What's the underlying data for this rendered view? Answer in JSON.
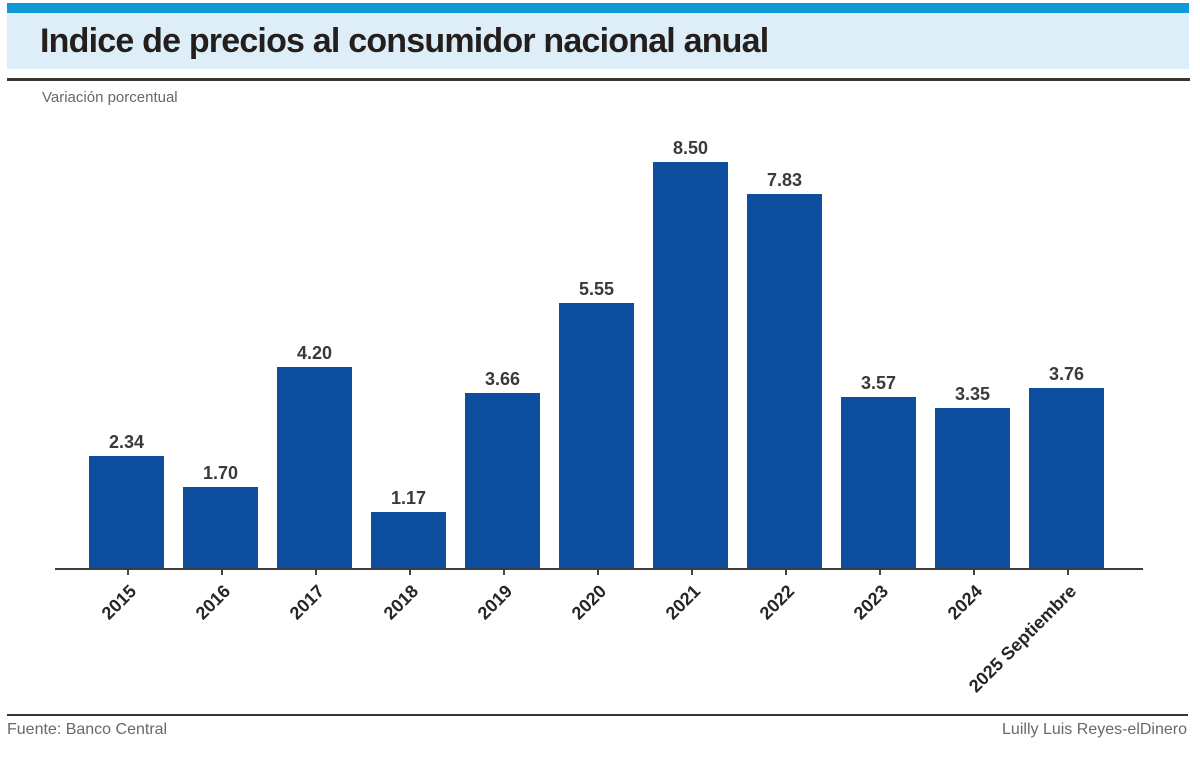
{
  "header": {
    "title": "Indice de precios al consumidor nacional anual",
    "subtitle": "Variación porcentual"
  },
  "footer": {
    "source": "Fuente: Banco Central",
    "credit": "Luilly Luis Reyes-elDinero"
  },
  "colors": {
    "accent_strip": "#0f99d7",
    "title_band": "#ddeef8",
    "bar": "#0d4f9e",
    "rule": "#3a3534",
    "axis": "#3d3d3d"
  },
  "chart_data": {
    "type": "bar",
    "title": "Indice de precios al consumidor nacional anual",
    "subtitle": "Variación porcentual",
    "categories": [
      "2015",
      "2016",
      "2017",
      "2018",
      "2019",
      "2020",
      "2021",
      "2022",
      "2023",
      "2024",
      "2025 Septiembre"
    ],
    "values": [
      2.34,
      1.7,
      4.2,
      1.17,
      3.66,
      5.55,
      8.5,
      7.83,
      3.57,
      3.35,
      3.76
    ],
    "value_labels": [
      "2.34",
      "1.70",
      "4.20",
      "1.17",
      "3.66",
      "5.55",
      "8.50",
      "7.83",
      "3.57",
      "3.35",
      "3.76"
    ],
    "xlabel": "",
    "ylabel": "Variación porcentual",
    "ylim": [
      0,
      8.5
    ],
    "grid": false,
    "legend": false,
    "bar_color": "#0d4f9e",
    "x_tick_rotation": 45
  }
}
